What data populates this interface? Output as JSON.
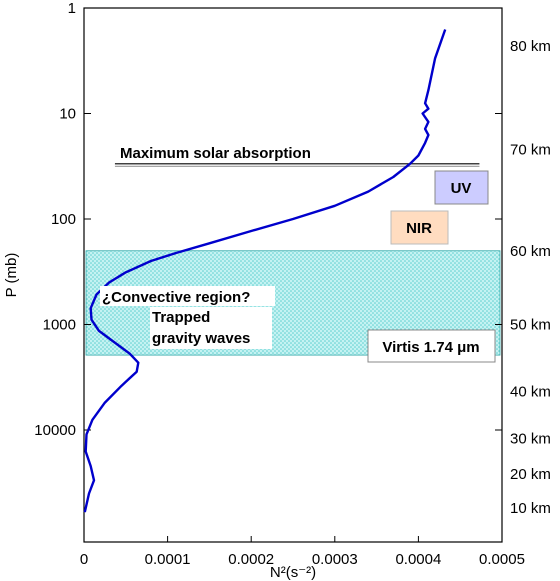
{
  "chart_data": {
    "type": "line",
    "xlabel": "N²(s⁻²)",
    "ylabel": "P (mb)",
    "xlim": [
      0,
      0.0005
    ],
    "ylim_log": [
      1,
      30000
    ],
    "y_scale": "log",
    "y_reversed": true,
    "x_ticks": [
      "0",
      "0.0001",
      "0.0002",
      "0.0003",
      "0.0004",
      "0.0005"
    ],
    "y_ticks": [
      {
        "value": 1,
        "label": "1"
      },
      {
        "value": 10,
        "label": "10"
      },
      {
        "value": 100,
        "label": "100"
      },
      {
        "value": 1000,
        "label": "1000"
      },
      {
        "value": 10000,
        "label": "10000"
      }
    ],
    "right_axis_labels": [
      {
        "label": "80 km",
        "p": 2.3
      },
      {
        "label": "70 km",
        "p": 22
      },
      {
        "label": "60 km",
        "p": 200
      },
      {
        "label": "50 km",
        "p": 1000
      },
      {
        "label": "40 km",
        "p": 4300
      },
      {
        "label": "30 km",
        "p": 12000
      },
      {
        "label": "20 km",
        "p": 26000
      },
      {
        "label": "10 km",
        "p": 55000
      }
    ],
    "series": [
      {
        "color": "#0000cc",
        "points": [
          [
            0.000432,
            1.6
          ],
          [
            0.00042,
            3
          ],
          [
            0.000412,
            6
          ],
          [
            0.000408,
            8
          ],
          [
            0.000412,
            9
          ],
          [
            0.000405,
            10
          ],
          [
            0.000412,
            12
          ],
          [
            0.000408,
            14
          ],
          [
            0.000412,
            16
          ],
          [
            0.000408,
            19
          ],
          [
            0.0004,
            25
          ],
          [
            0.00039,
            30
          ],
          [
            0.00037,
            40
          ],
          [
            0.00034,
            55
          ],
          [
            0.0003,
            75
          ],
          [
            0.00025,
            100
          ],
          [
            0.0002,
            130
          ],
          [
            0.00015,
            170
          ],
          [
            0.00011,
            210
          ],
          [
            8e-05,
            250
          ],
          [
            5e-05,
            320
          ],
          [
            3e-05,
            400
          ],
          [
            1.5e-05,
            520
          ],
          [
            8e-06,
            700
          ],
          [
            9e-06,
            900
          ],
          [
            1.8e-05,
            1150
          ],
          [
            3.5e-05,
            1450
          ],
          [
            5.5e-05,
            1900
          ],
          [
            6.5e-05,
            2300
          ],
          [
            6.3e-05,
            2800
          ],
          [
            4.5e-05,
            3800
          ],
          [
            2.5e-05,
            5500
          ],
          [
            1e-05,
            8000
          ],
          [
            3e-06,
            11000
          ],
          [
            2e-06,
            16000
          ],
          [
            8e-06,
            22000
          ],
          [
            1.2e-05,
            30000
          ],
          [
            6e-06,
            40000
          ],
          [
            1e-06,
            60000
          ]
        ]
      }
    ],
    "annotations": {
      "solar_line": {
        "text": "Maximum solar absorption",
        "p": 30,
        "x_from": 3.7e-05,
        "x_to": 0.000473
      },
      "uv": {
        "text": "UV",
        "text_color": "#0000cc",
        "fill": "#ccccff"
      },
      "nir": {
        "text": "NIR",
        "text_color": "#ff6600",
        "fill": "#ffdcc0"
      },
      "region": {
        "p_top": 200,
        "p_bottom": 1950,
        "fill": "#b8f0f0"
      },
      "convective": {
        "text": "¿Convective region?"
      },
      "trapped1": {
        "text": "Trapped"
      },
      "trapped2": {
        "text": "gravity waves"
      },
      "virtis": {
        "text": "Virtis 1.74 μm",
        "text_color": "#ff0000"
      }
    }
  }
}
